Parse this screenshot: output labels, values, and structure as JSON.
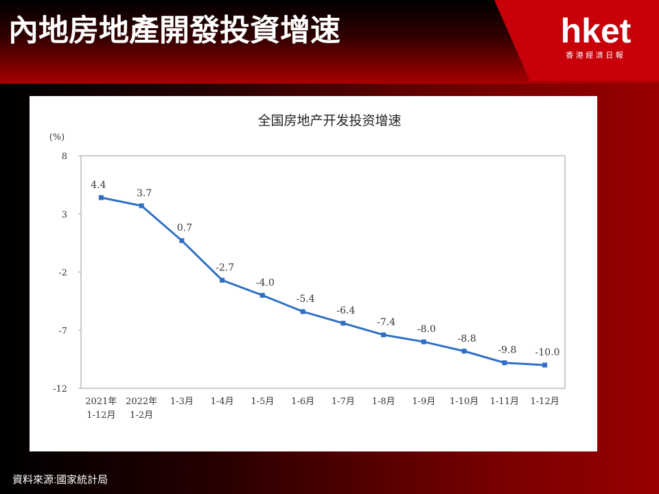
{
  "header": {
    "title": "內地房地產開發投資增速"
  },
  "logo": {
    "name": "hket",
    "tagline": "香 港 經 濟 日 報"
  },
  "source": "資料來源:國家統計局",
  "chart_data": {
    "type": "line",
    "title": "全国房地产开发投资增速",
    "y_label": "(%)",
    "categories": [
      "2021年\n1-12月",
      "2022年\n1-2月",
      "1-3月",
      "1-4月",
      "1-5月",
      "1-6月",
      "1-7月",
      "1-8月",
      "1-9月",
      "1-10月",
      "1-11月",
      "1-12月"
    ],
    "values": [
      4.4,
      3.7,
      0.7,
      -2.7,
      -4,
      -5.4,
      -6.4,
      -7.4,
      -8,
      -8.8,
      -9.8,
      -10
    ],
    "value_labels": [
      "4.4",
      "3.7",
      "0.7",
      "-2.7",
      "-4.0",
      "-5.4",
      "-6.4",
      "-7.4",
      "-8.0",
      "-8.8",
      "-9.8",
      "-10.0"
    ],
    "color": "#2e6fc4",
    "ylim": [
      -12,
      8
    ],
    "yticks": [
      8,
      3,
      -2,
      -7,
      -12
    ]
  }
}
